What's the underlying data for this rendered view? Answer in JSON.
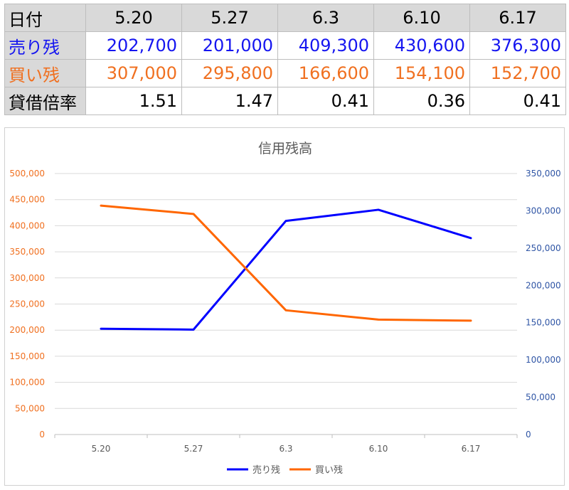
{
  "table": {
    "header": {
      "label": "日付",
      "dates": [
        "5.20",
        "5.27",
        "6.3",
        "6.10",
        "6.17"
      ]
    },
    "rows": [
      {
        "label": "売り残",
        "values": [
          "202,700",
          "201,000",
          "409,300",
          "430,600",
          "376,300"
        ],
        "color": "#1515f0"
      },
      {
        "label": "買い残",
        "values": [
          "307,000",
          "295,800",
          "166,600",
          "154,100",
          "152,700"
        ],
        "color": "#f07020"
      },
      {
        "label": "貸借倍率",
        "values": [
          "1.51",
          "1.47",
          "0.41",
          "0.36",
          "0.41"
        ],
        "color": "#000000"
      }
    ]
  },
  "chart_data": {
    "type": "line",
    "title": "信用残高",
    "categories": [
      "5.20",
      "5.27",
      "6.3",
      "6.10",
      "6.17"
    ],
    "series": [
      {
        "name": "売り残",
        "axis": "left",
        "color": "#0000ff",
        "values": [
          202700,
          201000,
          409300,
          430600,
          376300
        ]
      },
      {
        "name": "買い残",
        "axis": "right",
        "color": "#ff6600",
        "values": [
          307000,
          295800,
          166600,
          154100,
          152700
        ]
      }
    ],
    "left_axis": {
      "ylim": [
        0,
        500000
      ],
      "ticks": [
        "0",
        "50,000",
        "100,000",
        "150,000",
        "200,000",
        "250,000",
        "300,000",
        "350,000",
        "400,000",
        "450,000",
        "500,000"
      ],
      "color": "#f07020"
    },
    "right_axis": {
      "ylim": [
        0,
        350000
      ],
      "ticks": [
        "0",
        "50,000",
        "100,000",
        "150,000",
        "200,000",
        "250,000",
        "300,000",
        "350,000"
      ],
      "color": "#2f55a5"
    },
    "grid": true,
    "legend_position": "bottom"
  }
}
